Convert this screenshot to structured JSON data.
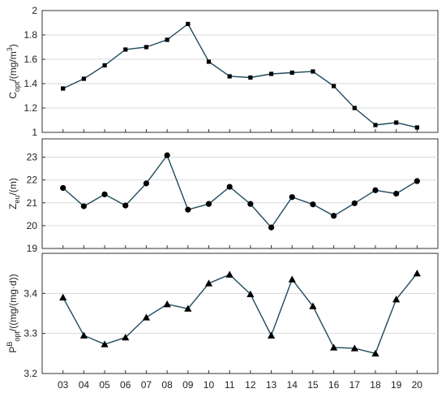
{
  "x_categories": [
    "03",
    "04",
    "05",
    "06",
    "07",
    "08",
    "09",
    "10",
    "11",
    "12",
    "13",
    "14",
    "15",
    "16",
    "17",
    "18",
    "19",
    "20"
  ],
  "colors": {
    "line": "#1e4a5e",
    "marker": "#000000",
    "grid": "#d9d9d9",
    "axis": "#333333"
  },
  "chart_data": [
    {
      "type": "line",
      "ylabel_main": "C",
      "ylabel_sub": "opt",
      "ylabel_rest": "/(mg/m",
      "ylabel_sup": "3",
      "ylabel_end": ")",
      "marker": "square",
      "ylim": [
        1,
        2
      ],
      "yticks": [
        1,
        1.2,
        1.4,
        1.6,
        1.8,
        2
      ],
      "ytick_labels": [
        "1",
        "1.2",
        "1.4",
        "1.6",
        "1.8",
        "2"
      ],
      "values": [
        1.36,
        1.44,
        1.55,
        1.68,
        1.7,
        1.76,
        1.89,
        1.58,
        1.46,
        1.45,
        1.48,
        1.49,
        1.5,
        1.38,
        1.2,
        1.06,
        1.08,
        1.04
      ],
      "grid": true
    },
    {
      "type": "line",
      "ylabel_main": "Z",
      "ylabel_sub": "eu",
      "ylabel_rest": "/(m)",
      "ylabel_sup": "",
      "ylabel_end": "",
      "marker": "circle",
      "ylim": [
        19,
        23.8
      ],
      "yticks": [
        19,
        20,
        21,
        22,
        23
      ],
      "ytick_labels": [
        "19",
        "20",
        "21",
        "22",
        "23"
      ],
      "values": [
        21.65,
        20.85,
        21.37,
        20.88,
        21.85,
        23.08,
        20.7,
        20.95,
        21.7,
        20.95,
        19.92,
        21.25,
        20.93,
        20.43,
        20.98,
        21.55,
        21.4,
        21.95
      ],
      "grid": true
    },
    {
      "type": "line",
      "ylabel_main": "P",
      "ylabel_sub": "opt",
      "ylabel_sup": "B",
      "ylabel_rest": "/((mg/(mg·d))",
      "ylabel_end": "",
      "marker": "triangle",
      "ylim": [
        3.2,
        3.5
      ],
      "yticks": [
        3.2,
        3.3,
        3.4
      ],
      "ytick_labels": [
        "3.2",
        "3.3",
        "3.4"
      ],
      "values": [
        3.39,
        3.295,
        3.273,
        3.29,
        3.34,
        3.373,
        3.362,
        3.425,
        3.447,
        3.398,
        3.295,
        3.435,
        3.368,
        3.265,
        3.263,
        3.25,
        3.385,
        3.45
      ],
      "grid": true
    }
  ]
}
